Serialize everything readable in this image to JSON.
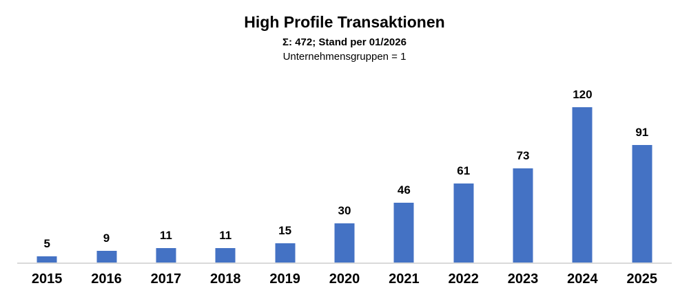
{
  "chart_data": {
    "type": "bar",
    "title": "High Profile Transaktionen",
    "subtitle_line1": "Σ: 472; Stand per 01/2026",
    "subtitle_line2": "Unternehmensgruppen = 1",
    "categories": [
      "2015",
      "2016",
      "2017",
      "2018",
      "2019",
      "2020",
      "2021",
      "2022",
      "2023",
      "2024",
      "2025"
    ],
    "values": [
      5,
      9,
      11,
      11,
      15,
      30,
      46,
      61,
      73,
      120,
      91
    ],
    "total": 472,
    "xlabel": "",
    "ylabel": "",
    "ylim": [
      0,
      125
    ],
    "grid": false,
    "legend": false,
    "data_labels": true,
    "colors": {
      "bar": "#4472C4",
      "axis_line": "#D9D9D9",
      "text": "#000000",
      "background": "#FFFFFF"
    }
  }
}
